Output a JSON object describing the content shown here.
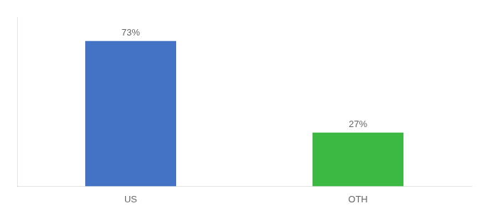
{
  "chart_data": {
    "type": "bar",
    "categories": [
      "US",
      "OTH"
    ],
    "values": [
      73,
      27
    ],
    "value_labels": [
      "73%",
      "27%"
    ],
    "colors": [
      "#4472C4",
      "#3CB943"
    ],
    "ylim": [
      0,
      85
    ],
    "grid": false,
    "data_labels": true,
    "tick_labels": "x"
  }
}
